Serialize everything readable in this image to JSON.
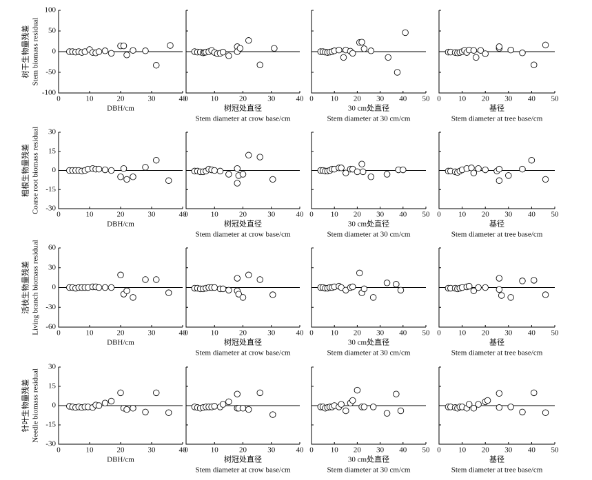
{
  "chart_data": [
    {
      "type": "scatter",
      "xlim": [
        0,
        40
      ],
      "ylim": [
        -100,
        100
      ],
      "xticks": [
        0,
        10,
        20,
        30,
        40
      ],
      "yticks": [
        -100,
        -50,
        0,
        50,
        100
      ],
      "xlabel": [
        "DBH/cm"
      ],
      "ylabel": [
        "树干生物量残差",
        "Stem biomass residual"
      ],
      "x": [
        3.5,
        4.5,
        5.5,
        6.5,
        7.5,
        8.5,
        10,
        11,
        12,
        13,
        15,
        17,
        20,
        21,
        22,
        24,
        28,
        31.5,
        36
      ],
      "y": [
        0,
        0,
        -1,
        0,
        -2,
        0,
        5,
        -2,
        -3,
        0,
        2,
        -4,
        14,
        14,
        -8,
        3,
        2,
        -33,
        15
      ]
    },
    {
      "type": "scatter",
      "xlim": [
        0,
        40
      ],
      "ylim": [
        -100,
        100
      ],
      "xticks": [
        0,
        10,
        20,
        30,
        40
      ],
      "yticks": [
        -100,
        -50,
        0,
        50,
        100
      ],
      "xlabel": [
        "树冠处直径",
        "Stem diameter at crow base/cm"
      ],
      "x": [
        3,
        4,
        5,
        6,
        6.5,
        7,
        8,
        9,
        10,
        11,
        12,
        13,
        15,
        18,
        18,
        19,
        22,
        26,
        31
      ],
      "y": [
        0,
        -1,
        -1,
        -3,
        -2,
        -1,
        0,
        3,
        -2,
        -5,
        -4,
        -1,
        -10,
        12,
        0,
        8,
        27,
        -32,
        8
      ]
    },
    {
      "type": "scatter",
      "xlim": [
        0,
        50
      ],
      "ylim": [
        -100,
        100
      ],
      "xticks": [
        0,
        10,
        20,
        30,
        40,
        50
      ],
      "yticks": [
        -100,
        -50,
        0,
        50,
        100
      ],
      "xlabel": [
        "30 cm处直径",
        "Stem diameter at 30 cm/cm"
      ],
      "x": [
        4,
        5,
        6,
        7,
        8,
        9,
        10,
        12,
        14,
        15,
        17,
        18,
        21,
        22,
        23,
        26,
        33.5,
        37.5,
        41
      ],
      "y": [
        0,
        0,
        -1,
        -2,
        -1,
        0,
        2,
        4,
        -14,
        4,
        1,
        -4,
        22,
        23,
        7,
        2,
        -14,
        -50,
        46
      ]
    },
    {
      "type": "scatter",
      "xlim": [
        0,
        50
      ],
      "ylim": [
        -100,
        100
      ],
      "xticks": [
        0,
        10,
        20,
        30,
        40,
        50
      ],
      "yticks": [
        -100,
        -50,
        0,
        50,
        100
      ],
      "xlabel": [
        "基径",
        "Stem diameter at tree base/cm"
      ],
      "x": [
        4,
        5,
        7,
        8,
        9,
        10,
        11,
        12,
        13,
        15,
        16,
        18,
        20,
        26,
        26,
        31,
        36,
        41,
        46
      ],
      "y": [
        -1,
        -1,
        -2,
        -3,
        -2,
        0,
        3,
        -2,
        4,
        3,
        -14,
        3,
        -5,
        8,
        12,
        4,
        -3,
        -32,
        16
      ]
    },
    {
      "type": "scatter",
      "xlim": [
        0,
        40
      ],
      "ylim": [
        -30,
        30
      ],
      "xticks": [
        0,
        10,
        20,
        30,
        40
      ],
      "yticks": [
        -30,
        -15,
        0,
        15,
        30
      ],
      "xlabel": [
        "DBH/cm"
      ],
      "ylabel": [
        "粗根生物量残差",
        "Coarse root biomass residual"
      ],
      "x": [
        3.5,
        4.5,
        5.5,
        6.5,
        7.5,
        8.5,
        9.5,
        11,
        12,
        13,
        15,
        17,
        20,
        21,
        22,
        24,
        28,
        31.5,
        35.5
      ],
      "y": [
        0,
        0,
        0,
        0,
        -0.5,
        0,
        1,
        1.5,
        1,
        1,
        0.5,
        0,
        -5,
        1.5,
        -7,
        -5,
        2.5,
        8,
        -8
      ]
    },
    {
      "type": "scatter",
      "xlim": [
        0,
        40
      ],
      "ylim": [
        -30,
        30
      ],
      "xticks": [
        0,
        10,
        20,
        30,
        40
      ],
      "yticks": [
        -30,
        -15,
        0,
        15,
        30
      ],
      "xlabel": [
        "树冠处直径",
        "Stem diameter at crow base/cm"
      ],
      "x": [
        3,
        4,
        5,
        6,
        7,
        8,
        9,
        10,
        12,
        15,
        18,
        18,
        18.5,
        20,
        22,
        26,
        30.5
      ],
      "y": [
        -0.5,
        -0.5,
        -1,
        -1,
        -0.5,
        1,
        0.5,
        0,
        -0.5,
        -3,
        1.5,
        -10,
        -4,
        -3,
        12,
        10.5,
        -7
      ]
    },
    {
      "type": "scatter",
      "xlim": [
        0,
        50
      ],
      "ylim": [
        -30,
        30
      ],
      "xticks": [
        0,
        10,
        20,
        30,
        40,
        50
      ],
      "yticks": [
        -30,
        -15,
        0,
        15,
        30
      ],
      "xlabel": [
        "30 cm处直径",
        "Stem diameter at 30 cm/cm"
      ],
      "x": [
        4,
        5,
        6,
        7,
        8,
        9,
        10,
        12,
        13,
        15,
        17,
        18,
        20,
        22,
        22.5,
        26,
        33,
        38,
        40
      ],
      "y": [
        0,
        0,
        -0.5,
        -0.5,
        0,
        1,
        1,
        2,
        2,
        -2,
        1,
        1,
        -1,
        5,
        -1,
        -5,
        -3,
        0.5,
        0.5
      ]
    },
    {
      "type": "scatter",
      "xlim": [
        0,
        50
      ],
      "ylim": [
        -30,
        30
      ],
      "xticks": [
        0,
        10,
        20,
        30,
        40,
        50
      ],
      "yticks": [
        -30,
        -15,
        0,
        15,
        30
      ],
      "xlabel": [
        "基径",
        "Stem diameter at tree base/cm"
      ],
      "x": [
        4,
        5,
        7,
        8,
        9,
        10,
        12,
        14,
        15,
        17,
        20,
        25,
        26,
        26,
        30,
        36,
        40,
        46
      ],
      "y": [
        -0.5,
        -0.5,
        -1,
        -1.5,
        -0.5,
        0.5,
        1.5,
        2,
        -2,
        1.5,
        0.5,
        -0.5,
        -8,
        1,
        -4,
        1,
        8,
        -7
      ]
    },
    {
      "type": "scatter",
      "xlim": [
        0,
        40
      ],
      "ylim": [
        -60,
        60
      ],
      "xticks": [
        0,
        10,
        20,
        30,
        40
      ],
      "yticks": [
        -60,
        -30,
        0,
        30,
        60
      ],
      "xlabel": [
        "DBH/cm"
      ],
      "ylabel": [
        "活枝生物量残差",
        "Living branch biomass residual"
      ],
      "x": [
        3.5,
        4.5,
        5.5,
        6.5,
        7.5,
        8.5,
        9.5,
        11,
        12,
        13,
        15,
        17,
        20,
        21,
        22,
        24,
        28,
        31.5,
        35.5
      ],
      "y": [
        0,
        0,
        -1,
        0,
        0,
        0,
        0,
        1,
        1,
        0,
        0,
        0,
        19,
        -10,
        -5,
        -15,
        12,
        12,
        -8
      ]
    },
    {
      "type": "scatter",
      "xlim": [
        0,
        40
      ],
      "ylim": [
        -60,
        60
      ],
      "xticks": [
        0,
        10,
        20,
        30,
        40
      ],
      "yticks": [
        -60,
        -30,
        0,
        30,
        60
      ],
      "xlabel": [
        "树冠处直径",
        "Stem diameter at crow base/cm"
      ],
      "x": [
        3,
        4,
        5,
        6,
        7,
        8,
        9,
        10,
        12,
        13,
        15,
        18,
        18,
        18.5,
        20,
        22,
        26,
        30.5
      ],
      "y": [
        -1,
        -1,
        -2,
        -2,
        -1,
        0,
        0,
        0,
        -2,
        -2,
        -4,
        14,
        -5,
        -10,
        -15,
        19,
        12,
        -11
      ]
    },
    {
      "type": "scatter",
      "xlim": [
        0,
        50
      ],
      "ylim": [
        -60,
        60
      ],
      "xticks": [
        0,
        10,
        20,
        30,
        40,
        50
      ],
      "yticks": [
        -60,
        -30,
        0,
        30,
        60
      ],
      "xlabel": [
        "30 cm处直径",
        "Stem diameter at 30 cm/cm"
      ],
      "x": [
        4,
        5,
        6,
        7,
        8,
        9,
        10,
        12,
        13,
        15,
        17,
        18,
        21,
        22,
        23,
        27,
        33,
        37,
        39
      ],
      "y": [
        0,
        0,
        -1,
        -1,
        0,
        0,
        1,
        2,
        0,
        -4,
        0,
        1,
        22,
        -8,
        -2,
        -15,
        7,
        5,
        -4
      ]
    },
    {
      "type": "scatter",
      "xlim": [
        0,
        50
      ],
      "ylim": [
        -60,
        60
      ],
      "xticks": [
        0,
        10,
        20,
        30,
        40,
        50
      ],
      "yticks": [
        -60,
        -30,
        0,
        30,
        60
      ],
      "xlabel": [
        "基径",
        "Stem diameter at tree base/cm"
      ],
      "x": [
        4,
        5,
        7,
        8,
        9,
        10,
        12,
        13,
        15,
        17,
        20,
        26,
        26,
        27,
        31,
        36,
        41,
        46
      ],
      "y": [
        -1,
        -1,
        -1,
        -2,
        -1,
        0,
        1,
        2,
        -5,
        0,
        0,
        14,
        -3,
        -12,
        -15,
        10,
        11,
        -11
      ]
    },
    {
      "type": "scatter",
      "xlim": [
        0,
        40
      ],
      "ylim": [
        -30,
        30
      ],
      "xticks": [
        0,
        10,
        20,
        30,
        40
      ],
      "yticks": [
        -30,
        -15,
        0,
        15,
        30
      ],
      "xlabel": [
        "DBH/cm"
      ],
      "ylabel": [
        "针叶生物量残差",
        "Needle biomass residual"
      ],
      "x": [
        3.5,
        4.5,
        5.5,
        6.5,
        7.5,
        8.5,
        9.5,
        11,
        12,
        13,
        15,
        17,
        20,
        21,
        22,
        24,
        28,
        31.5,
        35.5
      ],
      "y": [
        -0.5,
        -1,
        -1.5,
        -1,
        -1.5,
        -1,
        -1,
        -1.5,
        0.5,
        0,
        2,
        3.5,
        10,
        -2,
        -3,
        -2,
        -5,
        10,
        -5.5
      ]
    },
    {
      "type": "scatter",
      "xlim": [
        0,
        40
      ],
      "ylim": [
        -30,
        30
      ],
      "xticks": [
        0,
        10,
        20,
        30,
        40
      ],
      "yticks": [
        -30,
        -15,
        0,
        15,
        30
      ],
      "xlabel": [
        "树冠处直径",
        "Stem diameter at crow base/cm"
      ],
      "x": [
        3,
        4,
        5,
        6,
        7,
        8,
        9,
        10,
        12,
        13,
        15,
        18,
        18,
        18.5,
        20,
        22,
        26,
        30.5
      ],
      "y": [
        -1,
        -1.5,
        -2,
        -1.5,
        -1,
        -1,
        -1,
        -0.5,
        -1,
        1,
        3,
        9,
        -2,
        -2,
        -2,
        -3,
        10,
        -7
      ]
    },
    {
      "type": "scatter",
      "xlim": [
        0,
        50
      ],
      "ylim": [
        -30,
        30
      ],
      "xticks": [
        0,
        10,
        20,
        30,
        40,
        50
      ],
      "yticks": [
        -30,
        -15,
        0,
        15,
        30
      ],
      "xlabel": [
        "30 cm处直径",
        "Stem diameter at 30 cm/cm"
      ],
      "x": [
        4,
        5,
        6,
        7,
        8,
        9,
        10,
        12,
        13,
        15,
        17,
        18,
        20,
        22,
        23,
        27,
        33,
        37,
        39
      ],
      "y": [
        -1,
        -1,
        -2,
        -1.5,
        -1,
        -1,
        0,
        -1,
        1,
        -4,
        2,
        4,
        12,
        -1,
        -1,
        -1,
        -6,
        9,
        -4
      ]
    },
    {
      "type": "scatter",
      "xlim": [
        0,
        50
      ],
      "ylim": [
        -30,
        30
      ],
      "xticks": [
        0,
        10,
        20,
        30,
        40,
        50
      ],
      "yticks": [
        -30,
        -15,
        0,
        15,
        30
      ],
      "xlabel": [
        "基径",
        "Stem diameter at tree base/cm"
      ],
      "x": [
        4,
        5,
        7,
        8,
        9,
        10,
        12,
        13,
        15,
        17,
        20,
        21,
        26,
        26,
        31,
        36,
        41,
        46
      ],
      "y": [
        -1,
        -1,
        -1.5,
        -2,
        -1,
        -1,
        -2,
        1,
        -2,
        1,
        3,
        4,
        9.5,
        -1.5,
        -1,
        -5,
        10,
        -5.5
      ]
    }
  ]
}
